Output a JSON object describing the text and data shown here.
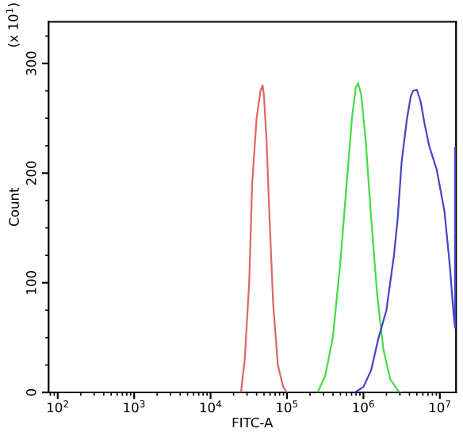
{
  "chart_data": {
    "type": "line",
    "xlabel": "FITC-A",
    "ylabel": "Count",
    "annotations": [
      "(x 10$^{1}$)"
    ],
    "log": "x",
    "grid": false,
    "marker": "none",
    "line_style": "solid",
    "xlim": [
      76,
      16300000
    ],
    "ylim": [
      0,
      338
    ],
    "xticks": [
      {
        "value": 100,
        "label": "10$^{2}$"
      },
      {
        "value": 1000,
        "label": "10$^{3}$"
      },
      {
        "value": 10000,
        "label": "10$^{4}$"
      },
      {
        "value": 100000,
        "label": "10$^{5}$"
      },
      {
        "value": 1000000,
        "label": "10$^{6}$"
      },
      {
        "value": 10000000,
        "label": "10$^{7}$"
      }
    ],
    "yticks": [
      0,
      100,
      200,
      300
    ],
    "series": [
      {
        "color": "#e06666",
        "x": [
          25000,
          28000,
          32000,
          35000,
          40000,
          45000,
          48000,
          50000,
          54000,
          59000,
          66000,
          76000,
          89000,
          100000
        ],
        "values": [
          0,
          30,
          100,
          190,
          250,
          275,
          280,
          270,
          230,
          160,
          80,
          25,
          5,
          0
        ]
      },
      {
        "color": "#44dd44",
        "x": [
          251000,
          316000,
          398000,
          501000,
          603000,
          708000,
          794000,
          851000,
          933000,
          1070000,
          1260000,
          1510000,
          1820000,
          2240000,
          2820000,
          3020000
        ],
        "values": [
          0,
          15,
          50,
          120,
          190,
          250,
          278,
          282,
          272,
          230,
          160,
          90,
          40,
          12,
          2,
          0
        ]
      },
      {
        "color": "#4444cc",
        "x": [
          776000,
          1000000,
          1260000,
          1580000,
          2000000,
          2510000,
          2820000,
          3160000,
          3720000,
          4170000,
          4470000,
          5010000,
          5620000,
          6310000,
          7240000,
          9120000,
          11500000,
          13500000,
          15100000,
          15800000,
          15800000
        ],
        "values": [
          0,
          5,
          20,
          50,
          75,
          125,
          160,
          210,
          250,
          270,
          275,
          276,
          265,
          245,
          225,
          203,
          165,
          116,
          72,
          59,
          223
        ]
      }
    ]
  }
}
